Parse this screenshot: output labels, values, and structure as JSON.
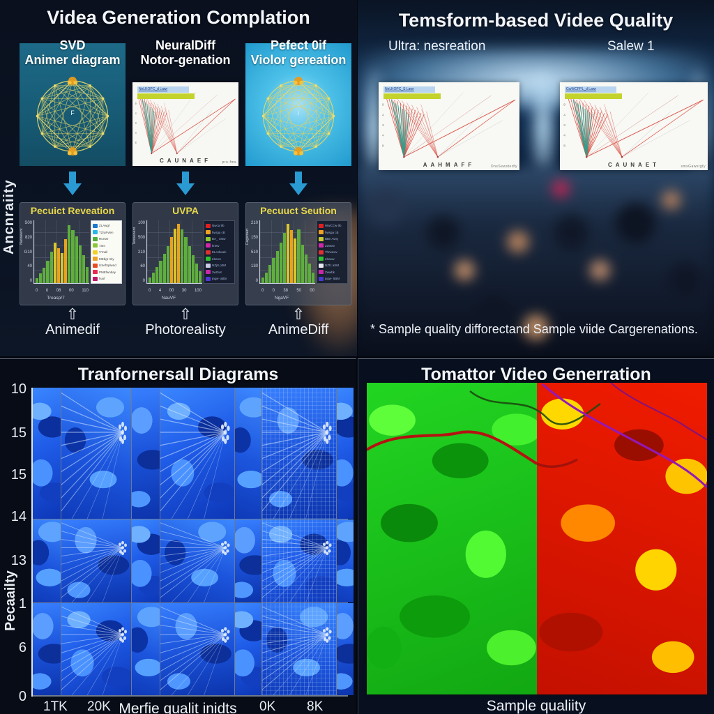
{
  "tl": {
    "title": "Videa Generation Complation",
    "side_label": "Ancnraiity",
    "columns": [
      {
        "header1": "SVD",
        "header2": "Animer diagram",
        "panel_center": "F",
        "footer": "Animedif",
        "chart": {
          "title": "Pecuict Reveation",
          "y_ticks": [
            "S00",
            "820",
            "G10",
            "40",
            "0"
          ],
          "x_ticks": [
            "0",
            "ti",
            "08",
            "00",
            "110"
          ],
          "x_label": "Treasp/7",
          "y_label": "Nasseent",
          "legend": [
            {
              "c": "#1e78d0",
              "t": "ZLAwgf"
            },
            {
              "c": "#29b6e8",
              "t": "TZraFvlen"
            },
            {
              "c": "#4fae3c",
              "t": "Rurrwr"
            },
            {
              "c": "#8cc53a",
              "t": "7arn"
            },
            {
              "c": "#f2d028",
              "t": "V'rnall"
            },
            {
              "c": "#f0a028",
              "t": "MEbgr mly"
            },
            {
              "c": "#e84c20",
              "t": "USefSplwnd"
            },
            {
              "c": "#e82a52",
              "t": "PMEfwnbay"
            },
            {
              "c": "#c01868",
              "t": "husf"
            }
          ]
        }
      },
      {
        "header1": "NeuralDiff",
        "header2": "Notor-genation",
        "caption": "CAUNAEF",
        "corner": "pro-fms",
        "legend1": "NeLKOPC_d Lawr",
        "footer": "Photorealisty",
        "chart": {
          "title": "UVPA",
          "y_ticks": [
            "100",
            "500",
            "210",
            "60",
            "0"
          ],
          "x_ticks": [
            "0",
            "4",
            "00",
            "30",
            "100"
          ],
          "x_label": "NauVF",
          "y_label": "Tesseoent",
          "legend": [
            {
              "c": "#e02020",
              "t": "Nwca 9b"
            },
            {
              "c": "#f0a020",
              "t": "hwrga cB"
            },
            {
              "c": "#8cc832",
              "t": "BA_ cStw"
            },
            {
              "c": "#d028a8",
              "t": "krtwv"
            },
            {
              "c": "#e03030",
              "t": "ELAdvaek"
            },
            {
              "c": "#30c030",
              "t": "Lbewv"
            },
            {
              "c": "#c8cce8",
              "t": "NZjS p3M"
            },
            {
              "c": "#c828a8",
              "t": "2wGwt"
            },
            {
              "c": "#5038d0",
              "t": "jngw- aBbr"
            }
          ]
        }
      },
      {
        "header1": "Pefect 0if",
        "header2": "Violor gereation",
        "panel_center": "i",
        "footer": "AnimeDiff",
        "chart": {
          "title": "Pecuuct Seution",
          "y_ticks": [
            "210",
            "150",
            "510",
            "130",
            "0"
          ],
          "x_ticks": [
            "0",
            "0",
            "38",
            "50",
            "00"
          ],
          "x_label": "NgaVF",
          "y_label": "Fagsmert",
          "legend": [
            {
              "c": "#e02020",
              "t": "WwCCw 9b"
            },
            {
              "c": "#f0a020",
              "t": "hwsga cB"
            },
            {
              "c": "#c8c832",
              "t": "BBn Awry"
            },
            {
              "c": "#d028a8",
              "t": "Zwwav"
            },
            {
              "c": "#e03030",
              "t": "7hrwewv"
            },
            {
              "c": "#30c030",
              "t": "Lbwwv"
            },
            {
              "c": "#e8e8f0",
              "t": "NZfc aSM"
            },
            {
              "c": "#c828a8",
              "t": "Zwwbk"
            },
            {
              "c": "#4838d0",
              "t": "jvgw- 5BM"
            }
          ]
        }
      }
    ]
  },
  "tr": {
    "title": "Temsform-based Videe Quality",
    "panels": [
      {
        "header": "Ultra: nesreation",
        "caption": "AAHMAFF",
        "corner": "OnsSewstedfy",
        "legend1": "NeLKOPC_S Lawr"
      },
      {
        "header": "Salew 1",
        "caption": "CAUNAET",
        "corner": "smsGawstgfy",
        "legend1": "GwWCPPL_d Lawr"
      }
    ],
    "footnote": "* Sample quality difforectand Sample viide Cargerenations."
  },
  "bl": {
    "title": "Tranfornersall Diagrams",
    "y_label": "Pecaailty",
    "y_ticks": [
      "10",
      "15",
      "15",
      "14",
      "13",
      "1",
      "6",
      "0"
    ],
    "x_ticks": [
      "1TK",
      "20K",
      "0K",
      "8K"
    ],
    "x_label": "Merfie qualit inidts"
  },
  "br": {
    "title": "Tomattor Video Generration",
    "caption": "Sample qualiity"
  },
  "colors": {
    "accent_blue": "#2a9ad2",
    "chart_title_yellow": "#e8d84a",
    "bar_green": "#5fae3e",
    "bar_orange": "#e8a21c",
    "bar_yellow": "#d9c62e"
  },
  "chart_data": [
    {
      "type": "bar",
      "title": "Pecuict Reveation",
      "values": [
        4,
        8,
        12,
        18,
        25,
        32,
        28,
        24,
        35,
        46,
        42,
        37,
        30,
        22,
        13
      ],
      "ymax": 50,
      "accent": [
        5,
        8
      ],
      "ylabel": "Nasseent",
      "xlabel": "Treasp/7"
    },
    {
      "type": "bar",
      "title": "UVPA",
      "values": [
        8,
        14,
        22,
        30,
        40,
        50,
        62,
        74,
        80,
        73,
        62,
        50,
        38,
        26,
        16
      ],
      "ymax": 85,
      "accent": [
        6,
        8
      ],
      "ylabel": "Tesseoent",
      "xlabel": "NauVF"
    },
    {
      "type": "bar",
      "title": "Pecuuct Seution",
      "values": [
        6,
        12,
        20,
        28,
        36,
        45,
        56,
        66,
        59,
        50,
        60,
        43,
        32,
        22,
        12
      ],
      "ymax": 70,
      "accent": [
        7,
        9
      ],
      "ylabel": "Fagsmert",
      "xlabel": "NgaVF"
    }
  ]
}
